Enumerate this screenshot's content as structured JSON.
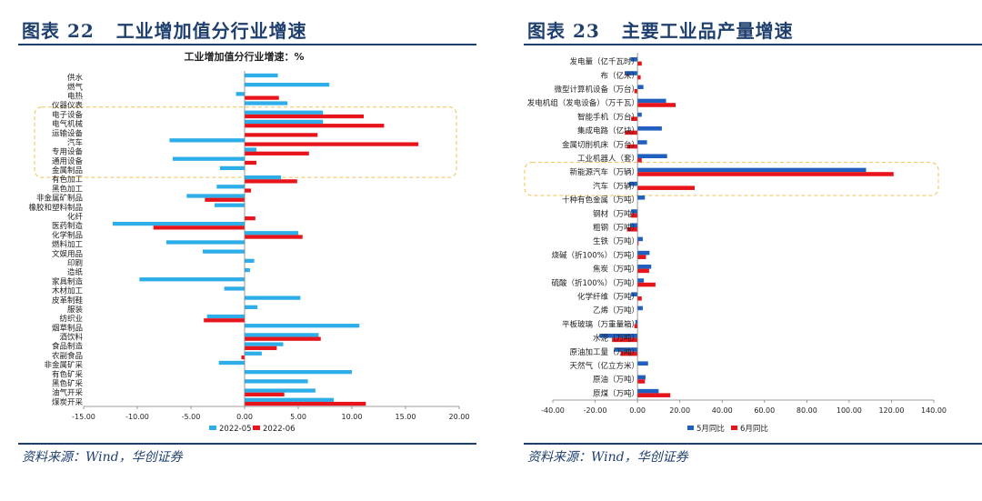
{
  "figure_left": {
    "label": "图表 22",
    "heading": "工业增加值分行业增速",
    "source": "资料来源：Wind，华创证券"
  },
  "figure_right": {
    "label": "图表 23",
    "heading": "主要工业品产量增速",
    "source": "资料来源：Wind，华创证券"
  },
  "colors": {
    "blue": "#2eaee8",
    "red": "#e8141c",
    "dark_blue": "#1f5fbf",
    "highlight": "#f2c14e"
  },
  "chart_data": [
    {
      "type": "bar",
      "orientation": "horizontal",
      "title": "工业增加值分行业增速：%",
      "categories": [
        "供水",
        "燃气",
        "电热",
        "仪器仪表",
        "电子设备",
        "电气机械",
        "运输设备",
        "汽车",
        "专用设备",
        "通用设备",
        "金属制品",
        "有色加工",
        "黑色加工",
        "非金属矿制品",
        "橡胶和塑料制品",
        "化纤",
        "医药制造",
        "化学制品",
        "燃料加工",
        "文娱用品",
        "印刷",
        "造纸",
        "家具制造",
        "木材加工",
        "皮革制鞋",
        "服装",
        "纺织业",
        "烟草制品",
        "酒饮料",
        "食品制造",
        "农副食品",
        "非金属矿采",
        "有色矿采",
        "黑色矿采",
        "油气开采",
        "煤炭开采"
      ],
      "series": [
        {
          "name": "2022-05",
          "values": [
            3.1,
            7.9,
            -0.8,
            4.0,
            7.3,
            7.3,
            0.0,
            -7.0,
            1.1,
            -6.7,
            -2.3,
            3.4,
            -2.6,
            -5.4,
            -2.8,
            0.0,
            -12.3,
            5.0,
            -7.3,
            -3.9,
            0.9,
            0.5,
            -9.8,
            -1.9,
            5.2,
            1.2,
            -3.5,
            10.7,
            6.9,
            3.6,
            1.6,
            -2.4,
            10.0,
            5.9,
            6.6,
            8.3
          ]
        },
        {
          "name": "2022-06",
          "values": [
            0.0,
            0.0,
            3.2,
            0.0,
            11.1,
            13.0,
            6.8,
            16.2,
            6.0,
            1.1,
            0.0,
            4.9,
            0.6,
            -3.7,
            0.0,
            1.0,
            -8.5,
            5.4,
            0.0,
            0.0,
            0.0,
            0.0,
            0.0,
            0.0,
            0.0,
            0.0,
            -3.8,
            0.0,
            7.1,
            3.0,
            -0.3,
            0.0,
            0.0,
            0.0,
            3.7,
            11.3
          ]
        }
      ],
      "xlim": [
        -15,
        20
      ],
      "xticks": [
        "-15.00",
        "-10.00",
        "-5.00",
        "0.00",
        "5.00",
        "10.00",
        "15.00",
        "20.00"
      ],
      "highlight": [
        "电子设备",
        "金属制品"
      ]
    },
    {
      "type": "bar",
      "orientation": "horizontal",
      "title": "",
      "categories": [
        "发电量（亿千瓦时）",
        "布（亿米）",
        "微型计算机设备（万台）",
        "发电机组（发电设备）（万千瓦）",
        "智能手机（万台）",
        "集成电路（亿块）",
        "金属切削机床（万台）",
        "工业机器人（套）",
        "新能源汽车（万辆）",
        "汽车（万辆）",
        "十种有色金属（万吨）",
        "钢材（万吨）",
        "粗钢（万吨）",
        "生铁（万吨）",
        "烧碱（折100%）（万吨）",
        "焦炭（万吨）",
        "硫酸（折100%）（万吨）",
        "化学纤维（万吨）",
        "乙烯（万吨）",
        "平板玻璃（万重量箱）",
        "水泥（万吨）",
        "原油加工量（万吨）",
        "天然气（亿立方米）",
        "原油（万吨）",
        "原煤（万吨）"
      ],
      "series": [
        {
          "name": "5月同比",
          "values": [
            -3.3,
            -6.0,
            2.8,
            13.5,
            2.0,
            11.5,
            4.5,
            14.0,
            108.0,
            -4.0,
            3.5,
            -3.0,
            -3.5,
            2.5,
            5.7,
            6.5,
            3.0,
            -3.0,
            2.5,
            -1.0,
            -18.0,
            -11.0,
            5.0,
            3.8,
            10.0
          ]
        },
        {
          "name": "6月同比",
          "values": [
            2.0,
            1.5,
            -1.5,
            18.0,
            -3.0,
            -6.0,
            -5.0,
            2.0,
            121.0,
            27.0,
            0.0,
            -3.0,
            -5.0,
            0.5,
            4.0,
            5.5,
            8.5,
            2.0,
            0.0,
            -1.5,
            -12.0,
            -8.0,
            0.0,
            3.5,
            15.5
          ]
        }
      ],
      "xlim": [
        -40,
        140
      ],
      "xticks": [
        "-40.00",
        "-20.00",
        "0.00",
        "20.00",
        "40.00",
        "60.00",
        "80.00",
        "100.00",
        "120.00",
        "140.00"
      ],
      "highlight": [
        "新能源汽车（万辆）",
        "汽车（万辆）"
      ]
    }
  ]
}
